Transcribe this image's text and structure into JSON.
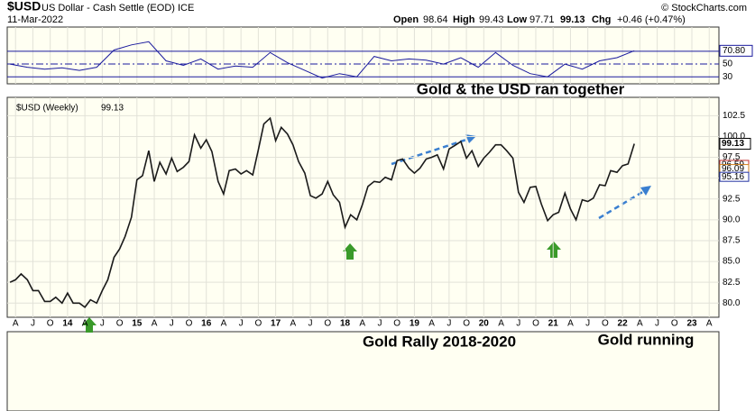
{
  "header": {
    "symbol": "$USD",
    "description": "US Dollar - Cash Settle (EOD) ICE",
    "date": "11-Mar-2022",
    "copyright": "© StockCharts.com",
    "open_label": "Open",
    "open": 98.64,
    "high_label": "High",
    "high": 99.43,
    "low_label": "Low",
    "low": 97.71,
    "last": 99.13,
    "chg_label": "Chg",
    "chg": "+0.46 (+0.47%)"
  },
  "annotations": [
    "Gold & the USD ran together",
    "Gold Rally 2018-2020",
    "Gold running"
  ],
  "chart_data": [
    {
      "type": "line",
      "color": "#1a1a9e",
      "x": [
        2013.17,
        2013.42,
        2013.67,
        2013.92,
        2014.17,
        2014.42,
        2014.67,
        2014.92,
        2015.17,
        2015.42,
        2015.67,
        2015.92,
        2016.17,
        2016.42,
        2016.67,
        2016.92,
        2017.17,
        2017.42,
        2017.67,
        2017.92,
        2018.17,
        2018.42,
        2018.67,
        2018.92,
        2019.17,
        2019.42,
        2019.67,
        2019.92,
        2020.17,
        2020.42,
        2020.67,
        2020.92,
        2021.17,
        2021.42,
        2021.67,
        2021.92,
        2022.17
      ],
      "values": [
        50,
        45,
        42,
        44,
        40,
        45,
        72,
        80,
        85,
        55,
        48,
        58,
        42,
        47,
        45,
        68,
        52,
        40,
        28,
        35,
        30,
        62,
        55,
        58,
        56,
        50,
        60,
        45,
        68,
        48,
        35,
        30,
        50,
        42,
        55,
        60,
        70.8
      ],
      "current": {
        "value": 70.8,
        "label": "70.80"
      },
      "ylim": [
        19,
        108
      ],
      "yticks": [
        30,
        50,
        70
      ]
    },
    {
      "type": "line",
      "name": "$USD (Weekly)",
      "color": "#1a1a1a",
      "last": 99.13,
      "x": [
        2013.17,
        2013.25,
        2013.33,
        2013.42,
        2013.5,
        2013.58,
        2013.67,
        2013.75,
        2013.83,
        2013.92,
        2014.0,
        2014.08,
        2014.17,
        2014.25,
        2014.33,
        2014.42,
        2014.5,
        2014.58,
        2014.67,
        2014.75,
        2014.83,
        2014.92,
        2015.0,
        2015.08,
        2015.17,
        2015.25,
        2015.33,
        2015.42,
        2015.5,
        2015.58,
        2015.67,
        2015.75,
        2015.83,
        2015.92,
        2016.0,
        2016.08,
        2016.17,
        2016.25,
        2016.33,
        2016.42,
        2016.5,
        2016.58,
        2016.67,
        2016.75,
        2016.83,
        2016.92,
        2017.0,
        2017.08,
        2017.17,
        2017.25,
        2017.33,
        2017.42,
        2017.5,
        2017.58,
        2017.67,
        2017.75,
        2017.83,
        2017.92,
        2018.0,
        2018.08,
        2018.17,
        2018.25,
        2018.33,
        2018.42,
        2018.5,
        2018.58,
        2018.67,
        2018.75,
        2018.83,
        2018.92,
        2019.0,
        2019.08,
        2019.17,
        2019.25,
        2019.33,
        2019.42,
        2019.5,
        2019.58,
        2019.67,
        2019.75,
        2019.83,
        2019.92,
        2020.0,
        2020.08,
        2020.17,
        2020.25,
        2020.33,
        2020.42,
        2020.5,
        2020.58,
        2020.67,
        2020.75,
        2020.83,
        2020.92,
        2021.0,
        2021.08,
        2021.17,
        2021.25,
        2021.33,
        2021.42,
        2021.5,
        2021.58,
        2021.67,
        2021.75,
        2021.83,
        2021.92,
        2022.0,
        2022.08,
        2022.17
      ],
      "values": [
        82.5,
        82.8,
        83.5,
        82.8,
        81.5,
        81.5,
        80.2,
        80.2,
        80.7,
        80.0,
        81.2,
        80.0,
        80.0,
        79.5,
        80.4,
        80.0,
        81.5,
        82.8,
        85.5,
        86.5,
        88.0,
        90.3,
        94.8,
        95.3,
        98.3,
        94.6,
        96.9,
        95.5,
        97.4,
        95.8,
        96.3,
        97.0,
        100.2,
        98.6,
        99.6,
        98.2,
        94.6,
        93.1,
        95.9,
        96.1,
        95.5,
        95.9,
        95.4,
        98.4,
        101.5,
        102.2,
        99.5,
        101.1,
        100.3,
        99.0,
        97.0,
        95.6,
        92.9,
        92.6,
        93.1,
        94.6,
        93.0,
        92.1,
        89.1,
        90.6,
        90.0,
        91.8,
        94.0,
        94.6,
        94.5,
        95.1,
        94.8,
        97.1,
        97.3,
        96.2,
        95.6,
        96.2,
        97.3,
        97.5,
        97.8,
        96.1,
        98.5,
        98.9,
        99.4,
        97.4,
        98.3,
        96.4,
        97.4,
        98.1,
        99.0,
        99.0,
        98.3,
        97.4,
        93.3,
        92.1,
        93.9,
        94.0,
        91.9,
        89.9,
        90.6,
        90.9,
        93.2,
        91.3,
        90.0,
        92.4,
        92.2,
        92.6,
        94.2,
        94.1,
        95.9,
        95.7,
        96.5,
        96.7,
        99.13
      ],
      "ma_labels": [
        {
          "value": 96.59,
          "label": "96.59"
        },
        {
          "value": 96.09,
          "label": "96.09"
        },
        {
          "value": 95.16,
          "label": "95.16"
        }
      ],
      "ylim": [
        78.3,
        104.7
      ],
      "yticks": [
        {
          "value": 80,
          "label": "80.0"
        },
        82.5,
        {
          "value": 85,
          "label": "85.0"
        },
        87.5,
        {
          "value": 90,
          "label": "90.0"
        },
        92.5,
        {
          "value": 95,
          "label": "95.0"
        },
        97.5,
        {
          "value": 100,
          "label": "100.0"
        },
        102.5
      ],
      "xlim": [
        2013.13,
        2023.39
      ],
      "xticks": [
        {
          "value": 2013.25,
          "label": "A"
        },
        {
          "value": 2013.5,
          "label": "J"
        },
        {
          "value": 2013.75,
          "label": "O"
        },
        {
          "value": 2014,
          "label": "14"
        },
        {
          "value": 2014.25,
          "label": "A"
        },
        {
          "value": 2014.5,
          "label": "J"
        },
        {
          "value": 2014.75,
          "label": "O"
        },
        {
          "value": 2015,
          "label": "15"
        },
        {
          "value": 2015.25,
          "label": "A"
        },
        {
          "value": 2015.5,
          "label": "J"
        },
        {
          "value": 2015.75,
          "label": "O"
        },
        {
          "value": 2016,
          "label": "16"
        },
        {
          "value": 2016.25,
          "label": "A"
        },
        {
          "value": 2016.5,
          "label": "J"
        },
        {
          "value": 2016.75,
          "label": "O"
        },
        {
          "value": 2017,
          "label": "17"
        },
        {
          "value": 2017.25,
          "label": "A"
        },
        {
          "value": 2017.5,
          "label": "J"
        },
        {
          "value": 2017.75,
          "label": "O"
        },
        {
          "value": 2018,
          "label": "18"
        },
        {
          "value": 2018.25,
          "label": "A"
        },
        {
          "value": 2018.5,
          "label": "J"
        },
        {
          "value": 2018.75,
          "label": "O"
        },
        {
          "value": 2019,
          "label": "19"
        },
        {
          "value": 2019.25,
          "label": "A"
        },
        {
          "value": 2019.5,
          "label": "J"
        },
        {
          "value": 2019.75,
          "label": "O"
        },
        {
          "value": 2020,
          "label": "20"
        },
        {
          "value": 2020.25,
          "label": "A"
        },
        {
          "value": 2020.5,
          "label": "J"
        },
        {
          "value": 2020.75,
          "label": "O"
        },
        {
          "value": 2021,
          "label": "21"
        },
        {
          "value": 2021.25,
          "label": "A"
        },
        {
          "value": 2021.5,
          "label": "J"
        },
        {
          "value": 2021.75,
          "label": "O"
        },
        {
          "value": 2022,
          "label": "22"
        },
        {
          "value": 2022.25,
          "label": "A"
        },
        {
          "value": 2022.5,
          "label": "J"
        },
        {
          "value": 2022.75,
          "label": "O"
        },
        {
          "value": 2023,
          "label": "23"
        },
        {
          "value": 2023.25,
          "label": "A"
        }
      ],
      "grid": true
    }
  ]
}
